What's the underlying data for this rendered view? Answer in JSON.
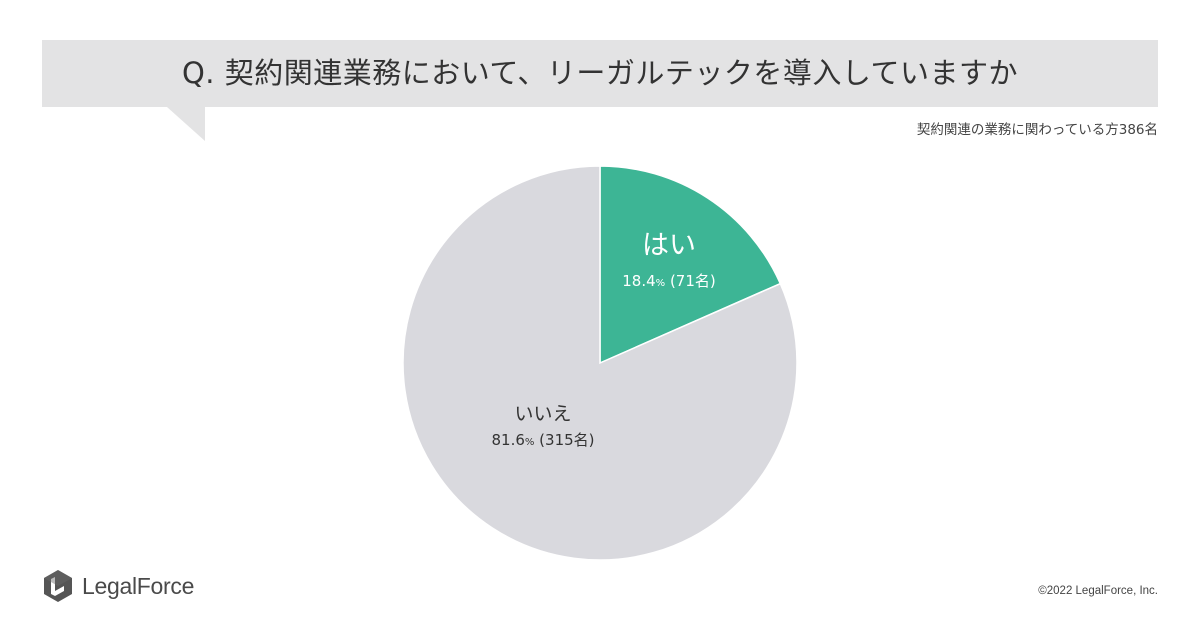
{
  "title": "Q. 契約関連業務において、リーガルテックを導入していますか",
  "respondents_note": "契約関連の業務に関わっている方386名",
  "colors": {
    "yes": "#3db595",
    "no": "#d9d9de",
    "banner": "#e3e3e4"
  },
  "chart_data": {
    "type": "pie",
    "title": "Q. 契約関連業務において、リーガルテックを導入していますか",
    "total": 386,
    "total_label": "契約関連の業務に関わっている方386名",
    "start_angle": "12 o'clock, clockwise",
    "slices": [
      {
        "label": "はい",
        "percent": 18.4,
        "count": 71,
        "count_text": "(71名)",
        "color": "#3db595"
      },
      {
        "label": "いいえ",
        "percent": 81.6,
        "count": 315,
        "count_text": "(315名)",
        "color": "#d9d9de"
      }
    ]
  },
  "footer": {
    "logo_text": "LegalForce",
    "logo_icon": "legalforce-logo-icon",
    "copyright": "©2022 LegalForce, Inc."
  }
}
